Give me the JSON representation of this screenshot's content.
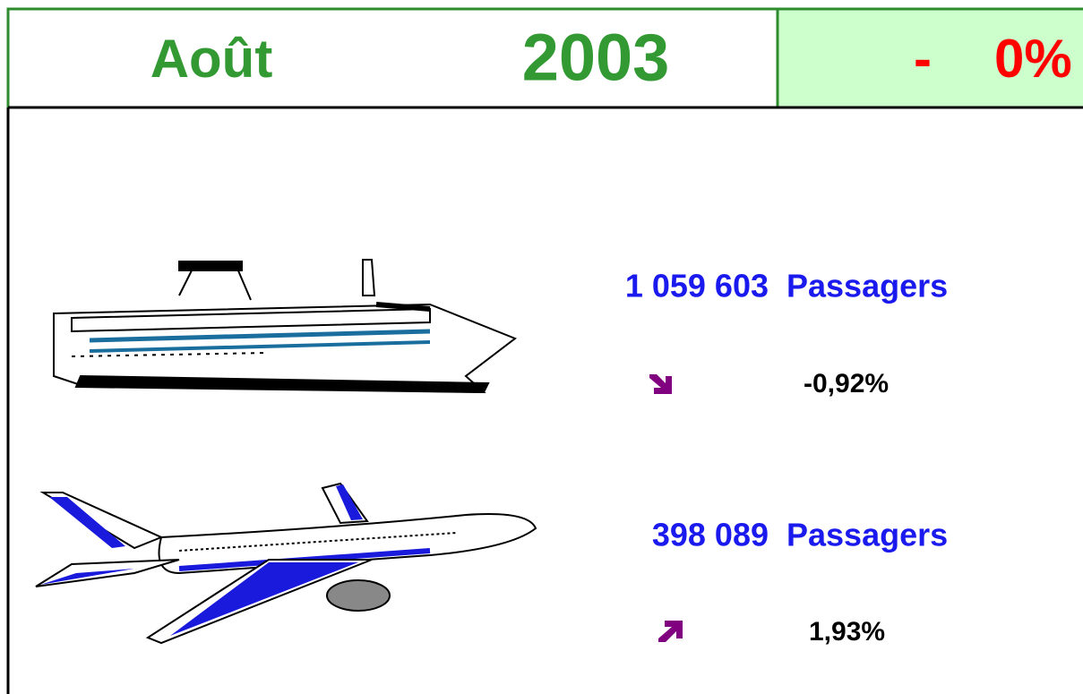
{
  "header": {
    "month": "Août",
    "year": "2003",
    "sign": "-",
    "change": "0%"
  },
  "rows": [
    {
      "passengers": "1 059 603",
      "unit": "Passagers",
      "change": "-0,92%"
    },
    {
      "passengers": "398 089",
      "unit": "Passagers",
      "change": "1,93%"
    }
  ]
}
